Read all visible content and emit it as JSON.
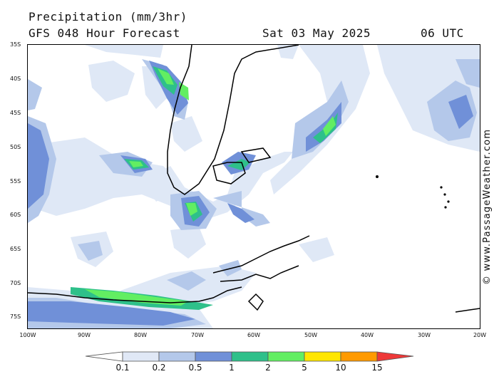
{
  "header": {
    "title": "Precipitation (mm/3hr)",
    "model": "GFS 048 Hour Forecast",
    "date": "Sat 03 May 2025",
    "time": "06 UTC"
  },
  "credit": "© www.PassageWeather.com",
  "map": {
    "lat_labels": [
      "35S",
      "40S",
      "45S",
      "50S",
      "55S",
      "60S",
      "65S",
      "70S",
      "75S"
    ],
    "lon_labels": [
      "100W",
      "90W",
      "80W",
      "70W",
      "60W",
      "50W",
      "40W",
      "30W",
      "20W"
    ]
  },
  "legend": {
    "labels": [
      "0.1",
      "0.2",
      "0.5",
      "1",
      "2",
      "5",
      "10",
      "15"
    ],
    "colors": {
      "white": "#ffffff",
      "c0_1": "#e0e8f6",
      "c0_2": "#b4c8ea",
      "c0_5": "#7090d8",
      "c1": "#2ec08a",
      "c2": "#62ee62",
      "c5": "#ffe600",
      "c10": "#ff9a00",
      "c15": "#ee3838"
    }
  }
}
